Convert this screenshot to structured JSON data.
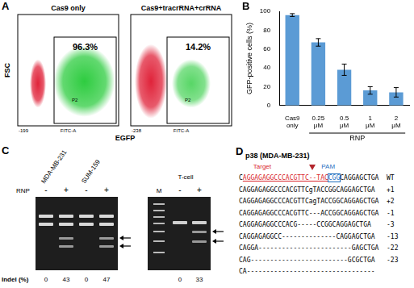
{
  "chart_data": {
    "type": "bar",
    "letter": "B",
    "categories": [
      "Cas9 only",
      "0.25 μM",
      "0.5 μM",
      "1 μM",
      "2 μM"
    ],
    "values": [
      96,
      67,
      38,
      16,
      14
    ],
    "errors": [
      1.5,
      4,
      6,
      4,
      5
    ],
    "color": "#5b9bd5",
    "y_label": "GFP-positive cells (%)",
    "ylim": [
      0,
      100
    ],
    "yticks": [
      0,
      20,
      40,
      60,
      80,
      100
    ],
    "grid": false,
    "annotations": [
      {
        "text": "RNP",
        "from": "0.25 μM",
        "to": "2 μM"
      }
    ]
  },
  "panel_a": {
    "letter": "A",
    "y_label": "FSC",
    "x_label": "EGFP",
    "x_axis_name": "FITC-A",
    "plots": [
      {
        "title": "Cas9 only",
        "gate": "P2",
        "percent": "96.3%",
        "x_tick": "-199"
      },
      {
        "title": "Cas9+tracrRNA+crRNA",
        "gate": "P2",
        "percent": "14.2%",
        "x_tick": "-238"
      }
    ]
  },
  "panel_c": {
    "letter": "C",
    "row_label": "RNP",
    "indel_label": "Indel (%)",
    "gels": [
      {
        "samples": [
          {
            "name": "MDA-MB-231",
            "lanes": [
              "-",
              "+"
            ],
            "indel": [
              "0",
              "43"
            ]
          },
          {
            "name": "SUM-159",
            "lanes": [
              "-",
              "+"
            ],
            "indel": [
              "0",
              "47"
            ]
          }
        ]
      },
      {
        "title": "T-cell",
        "marker": "M",
        "lanes": [
          "-",
          "+"
        ],
        "indel": [
          "0",
          "33"
        ]
      }
    ]
  },
  "panel_d": {
    "letter": "D",
    "title": "p38 (MDA-MB-231)",
    "target_label": "Target",
    "pam_label": "PAM",
    "wt": {
      "prefix": "C",
      "target": "AGGAGAGGCCCACGTTC--TAC",
      "pam": "CGG",
      "suffix": "CAGGAGCTGA",
      "label": "WT"
    },
    "mutants": [
      {
        "sequence": "CAGGAGAGGCCCACGTTCgTACCGGCAGGAGCTGA",
        "label": "+1"
      },
      {
        "sequence": "CAGGAGAGGCCCACGTTCagTACCGGCAGGAGCTGA",
        "label": "+2"
      },
      {
        "sequence": "CAGGAGAGGCCCACGTTC---ACCGGCAGGAGCTGA",
        "label": "-1"
      },
      {
        "sequence": "CAGGAGAGGCCCACG-----CCGGCAGGAGCTGA",
        "label": "-3"
      },
      {
        "sequence": "CAGGAGAGGCC--------------CAGGAGCTGA",
        "label": "-13"
      },
      {
        "sequence": "CAGGA------------------------GAGCTGA",
        "label": "-22"
      },
      {
        "sequence": "CAG-------------------------GCGCTGA",
        "label": "-23"
      },
      {
        "sequence": "CA---------------------------------"
      }
    ]
  }
}
